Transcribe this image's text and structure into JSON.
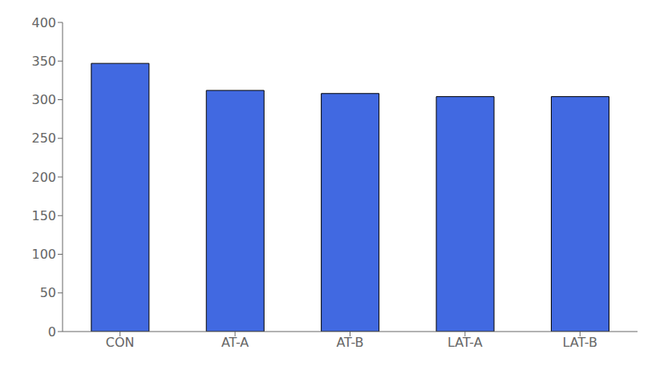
{
  "chart_data": {
    "type": "bar",
    "categories": [
      "CON",
      "AT-A",
      "AT-B",
      "LAT-A",
      "LAT-B"
    ],
    "values": [
      347,
      312,
      308,
      304,
      304
    ],
    "color": "#4169E1",
    "ylim": [
      0,
      400
    ],
    "yticks": [
      0,
      50,
      100,
      150,
      200,
      250,
      300,
      350,
      400
    ],
    "grid": false
  }
}
